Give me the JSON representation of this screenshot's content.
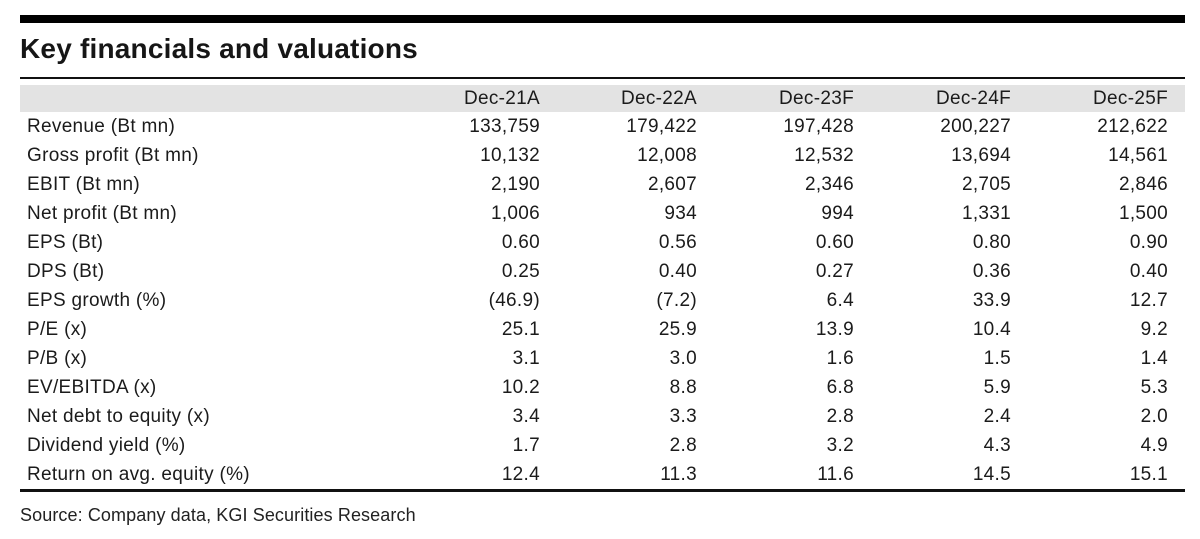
{
  "title": "Key financials and valuations",
  "source": "Source: Company data, KGI Securities Research",
  "colors": {
    "top_bar": "#000000",
    "header_bg": "#e3e3e3",
    "text": "#1b1b1b"
  },
  "table": {
    "columns": [
      "Dec-21A",
      "Dec-22A",
      "Dec-23F",
      "Dec-24F",
      "Dec-25F"
    ],
    "rows": [
      {
        "label": "Revenue (Bt mn)",
        "values": [
          "133,759",
          "179,422",
          "197,428",
          "200,227",
          "212,622"
        ]
      },
      {
        "label": "Gross profit (Bt mn)",
        "values": [
          "10,132",
          "12,008",
          "12,532",
          "13,694",
          "14,561"
        ]
      },
      {
        "label": "EBIT (Bt mn)",
        "values": [
          "2,190",
          "2,607",
          "2,346",
          "2,705",
          "2,846"
        ]
      },
      {
        "label": "Net profit (Bt mn)",
        "values": [
          "1,006",
          "934",
          "994",
          "1,331",
          "1,500"
        ]
      },
      {
        "label": "EPS (Bt)",
        "values": [
          "0.60",
          "0.56",
          "0.60",
          "0.80",
          "0.90"
        ]
      },
      {
        "label": "DPS (Bt)",
        "values": [
          "0.25",
          "0.40",
          "0.27",
          "0.36",
          "0.40"
        ]
      },
      {
        "label": "EPS growth (%)",
        "values": [
          "(46.9)",
          "(7.2)",
          "6.4",
          "33.9",
          "12.7"
        ]
      },
      {
        "label": "P/E (x)",
        "values": [
          "25.1",
          "25.9",
          "13.9",
          "10.4",
          "9.2"
        ]
      },
      {
        "label": "P/B (x)",
        "values": [
          "3.1",
          "3.0",
          "1.6",
          "1.5",
          "1.4"
        ]
      },
      {
        "label": "EV/EBITDA (x)",
        "values": [
          "10.2",
          "8.8",
          "6.8",
          "5.9",
          "5.3"
        ]
      },
      {
        "label": "Net debt to equity (x)",
        "values": [
          "3.4",
          "3.3",
          "2.8",
          "2.4",
          "2.0"
        ]
      },
      {
        "label": "Dividend yield (%)",
        "values": [
          "1.7",
          "2.8",
          "3.2",
          "4.3",
          "4.9"
        ]
      },
      {
        "label": "Return on avg. equity (%)",
        "values": [
          "12.4",
          "11.3",
          "11.6",
          "14.5",
          "15.1"
        ]
      }
    ]
  }
}
